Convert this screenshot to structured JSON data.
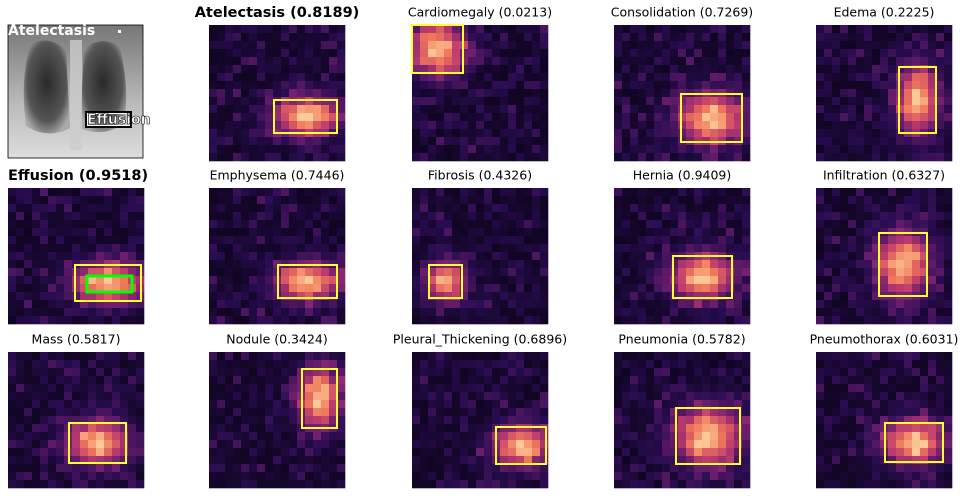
{
  "xray_labels": [
    "Atelectasis",
    "Effusion"
  ],
  "panels": [
    {
      "title": "Atelectasis (0.8189)"
    },
    {
      "title": "Cardiomegaly (0.0213)"
    },
    {
      "title": "Consolidation (0.7269)"
    },
    {
      "title": "Edema (0.2225)"
    },
    {
      "title": "Effusion (0.9518)"
    },
    {
      "title": "Emphysema (0.7446)"
    },
    {
      "title": "Fibrosis (0.4326)"
    },
    {
      "title": "Hernia (0.9409)"
    },
    {
      "title": "Infiltration (0.6327)"
    },
    {
      "title": "Mass (0.5817)"
    },
    {
      "title": "Nodule (0.3424)"
    },
    {
      "title": "Pleural_Thickening (0.6896)"
    },
    {
      "title": "Pneumonia (0.5782)"
    },
    {
      "title": "Pneumothorax (0.6031)"
    }
  ]
}
